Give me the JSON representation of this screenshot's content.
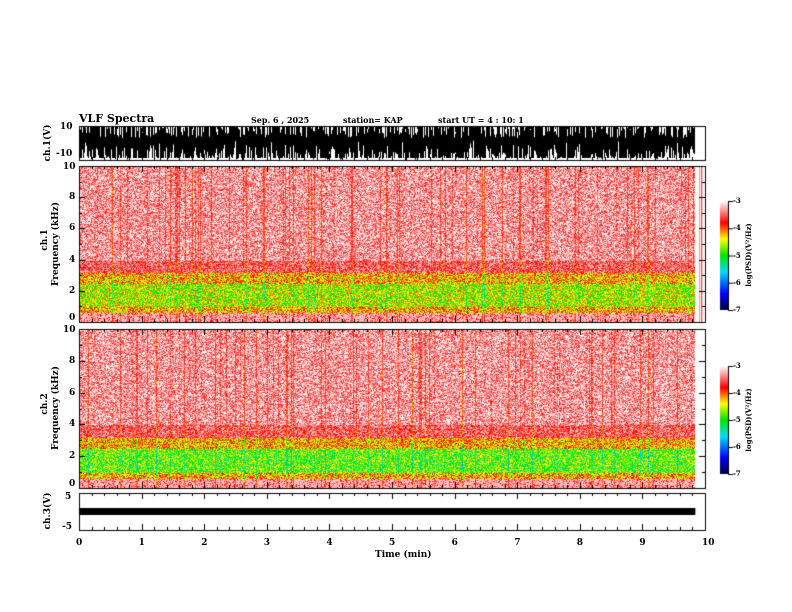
{
  "header": {
    "title": "VLF Spectra",
    "date": "Sep. 6  , 2025",
    "station": "station= KAP",
    "start": "start  UT =   4 : 10: 1"
  },
  "chart_data": [
    {
      "type": "line",
      "name": "ch1 waveform",
      "ylabel": "ch.1(V)",
      "ylim": [
        -10,
        10
      ],
      "yticks": [
        "10",
        "-10"
      ],
      "xlim": [
        0,
        10
      ]
    },
    {
      "type": "heatmap",
      "name": "ch1 spectrogram",
      "ylabel": "ch.1\nFrequency (kHz)",
      "ylabel_ch": "ch.1",
      "ylabel_f": "Frequency  (kHz)",
      "ylim": [
        0,
        10
      ],
      "yticks": [
        "0",
        "2",
        "4",
        "6",
        "8",
        "10"
      ],
      "xlim": [
        0,
        10
      ],
      "colorbar": {
        "label": "log(PSD)(V²/Hz)",
        "range": [
          -7,
          -3
        ],
        "ticks": [
          "-3",
          "-4",
          "-5",
          "-6",
          "-7"
        ]
      }
    },
    {
      "type": "heatmap",
      "name": "ch2 spectrogram",
      "ylabel_ch": "ch.2",
      "ylabel_f": "Frequency  (kHz)",
      "ylim": [
        0,
        10
      ],
      "yticks": [
        "0",
        "2",
        "4",
        "6",
        "8",
        "10"
      ],
      "xlim": [
        0,
        10
      ],
      "colorbar": {
        "label": "log(PSD)(V²/Hz)",
        "range": [
          -7,
          -3
        ],
        "ticks": [
          "-3",
          "-4",
          "-5",
          "-6",
          "-7"
        ]
      }
    },
    {
      "type": "line",
      "name": "ch3 waveform",
      "ylabel": "ch.3(V)",
      "ylim": [
        -5,
        5
      ],
      "yticks": [
        "5",
        "-5"
      ],
      "xlim": [
        0,
        10
      ],
      "xlabel": "Time  (min)",
      "xticks": [
        "0",
        "1",
        "2",
        "3",
        "4",
        "5",
        "6",
        "7",
        "8",
        "9",
        "10"
      ],
      "data_end_min": 9.83
    }
  ]
}
